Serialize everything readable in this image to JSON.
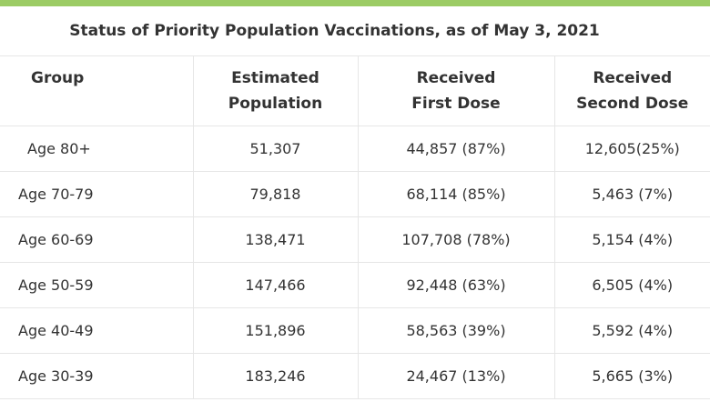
{
  "table": {
    "caption": "Status of Priority Population Vaccinations, as of May 3, 2021",
    "headers": {
      "group": "Group",
      "population": [
        "Estimated",
        "Population"
      ],
      "first_dose": [
        "Received",
        "First Dose"
      ],
      "second_dose": [
        "Received",
        "Second Dose"
      ]
    },
    "rows": [
      {
        "group": "Age 80+",
        "population": "51,307",
        "first_dose": "44,857 (87%)",
        "second_dose": "12,605(25%)"
      },
      {
        "group": "Age 70-79",
        "population": "79,818",
        "first_dose": "68,114 (85%)",
        "second_dose": "5,463 (7%)"
      },
      {
        "group": "Age 60-69",
        "population": "138,471",
        "first_dose": "107,708 (78%)",
        "second_dose": "5,154 (4%)"
      },
      {
        "group": "Age 50-59",
        "population": "147,466",
        "first_dose": "92,448 (63%)",
        "second_dose": "6,505 (4%)"
      },
      {
        "group": "Age 40-49",
        "population": "151,896",
        "first_dose": "58,563 (39%)",
        "second_dose": "5,592 (4%)"
      },
      {
        "group": "Age 30-39",
        "population": "183,246",
        "first_dose": "24,467 (13%)",
        "second_dose": "5,665 (3%)"
      }
    ]
  },
  "colors": {
    "accent_bar": "#9ccc65",
    "text": "#333333",
    "border": "#e6e6e6"
  }
}
